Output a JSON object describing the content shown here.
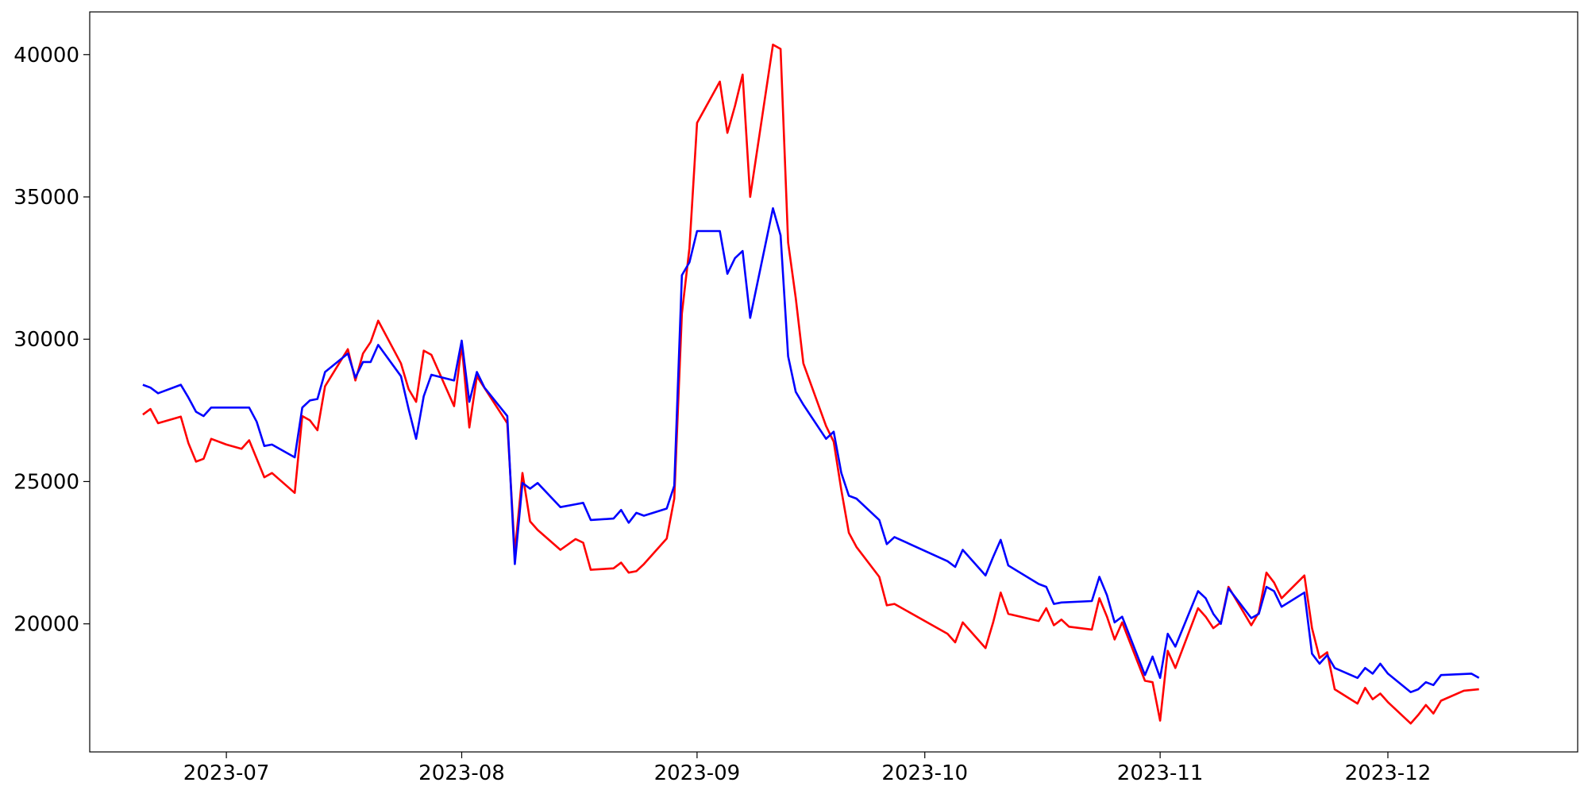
{
  "chart_data": {
    "type": "line",
    "title": "",
    "xlabel": "",
    "ylabel": "",
    "xlim": [
      "2023-06-13",
      "2023-12-26"
    ],
    "ylim": [
      15500,
      41500
    ],
    "grid": false,
    "legend": "none",
    "x_ticks": [
      {
        "date": "2023-07-01",
        "label": "2023-07"
      },
      {
        "date": "2023-08-01",
        "label": "2023-08"
      },
      {
        "date": "2023-09-01",
        "label": "2023-09"
      },
      {
        "date": "2023-10-01",
        "label": "2023-10"
      },
      {
        "date": "2023-11-01",
        "label": "2023-11"
      },
      {
        "date": "2023-12-01",
        "label": "2023-12"
      }
    ],
    "y_ticks": [
      {
        "value": 20000,
        "label": "20000"
      },
      {
        "value": 25000,
        "label": "25000"
      },
      {
        "value": 30000,
        "label": "30000"
      },
      {
        "value": 35000,
        "label": "35000"
      },
      {
        "value": 40000,
        "label": "40000"
      }
    ],
    "series": [
      {
        "color": "#ff0000",
        "points": [
          [
            "2023-06-20",
            27350
          ],
          [
            "2023-06-21",
            27550
          ],
          [
            "2023-06-22",
            27050
          ],
          [
            "2023-06-25",
            27280
          ],
          [
            "2023-06-26",
            26350
          ],
          [
            "2023-06-27",
            25700
          ],
          [
            "2023-06-28",
            25800
          ],
          [
            "2023-06-29",
            26500
          ],
          [
            "2023-07-01",
            26300
          ],
          [
            "2023-07-03",
            26150
          ],
          [
            "2023-07-04",
            26450
          ],
          [
            "2023-07-06",
            25150
          ],
          [
            "2023-07-07",
            25300
          ],
          [
            "2023-07-10",
            24600
          ],
          [
            "2023-07-11",
            27300
          ],
          [
            "2023-07-12",
            27150
          ],
          [
            "2023-07-13",
            26800
          ],
          [
            "2023-07-14",
            28350
          ],
          [
            "2023-07-17",
            29650
          ],
          [
            "2023-07-18",
            28550
          ],
          [
            "2023-07-19",
            29500
          ],
          [
            "2023-07-20",
            29900
          ],
          [
            "2023-07-21",
            30650
          ],
          [
            "2023-07-24",
            29150
          ],
          [
            "2023-07-25",
            28250
          ],
          [
            "2023-07-26",
            27800
          ],
          [
            "2023-07-27",
            29600
          ],
          [
            "2023-07-28",
            29450
          ],
          [
            "2023-07-31",
            27650
          ],
          [
            "2023-08-01",
            29800
          ],
          [
            "2023-08-02",
            26900
          ],
          [
            "2023-08-03",
            28700
          ],
          [
            "2023-08-07",
            27050
          ],
          [
            "2023-08-08",
            22500
          ],
          [
            "2023-08-09",
            25300
          ],
          [
            "2023-08-10",
            23600
          ],
          [
            "2023-08-11",
            23300
          ],
          [
            "2023-08-14",
            22600
          ],
          [
            "2023-08-16",
            22980
          ],
          [
            "2023-08-17",
            22850
          ],
          [
            "2023-08-18",
            21900
          ],
          [
            "2023-08-21",
            21950
          ],
          [
            "2023-08-22",
            22150
          ],
          [
            "2023-08-23",
            21800
          ],
          [
            "2023-08-24",
            21850
          ],
          [
            "2023-08-25",
            22100
          ],
          [
            "2023-08-28",
            23000
          ],
          [
            "2023-08-29",
            24400
          ],
          [
            "2023-08-30",
            30900
          ],
          [
            "2023-08-31",
            33200
          ],
          [
            "2023-09-01",
            37600
          ],
          [
            "2023-09-04",
            39050
          ],
          [
            "2023-09-05",
            37250
          ],
          [
            "2023-09-06",
            38200
          ],
          [
            "2023-09-07",
            39300
          ],
          [
            "2023-09-08",
            35000
          ],
          [
            "2023-09-11",
            40350
          ],
          [
            "2023-09-12",
            40200
          ],
          [
            "2023-09-13",
            33400
          ],
          [
            "2023-09-14",
            31450
          ],
          [
            "2023-09-15",
            29150
          ],
          [
            "2023-09-18",
            26950
          ],
          [
            "2023-09-19",
            26400
          ],
          [
            "2023-09-20",
            24700
          ],
          [
            "2023-09-21",
            23200
          ],
          [
            "2023-09-22",
            22700
          ],
          [
            "2023-09-25",
            21650
          ],
          [
            "2023-09-26",
            20650
          ],
          [
            "2023-09-27",
            20700
          ],
          [
            "2023-10-04",
            19650
          ],
          [
            "2023-10-05",
            19350
          ],
          [
            "2023-10-06",
            20050
          ],
          [
            "2023-10-09",
            19150
          ],
          [
            "2023-10-10",
            20050
          ],
          [
            "2023-10-11",
            21100
          ],
          [
            "2023-10-12",
            20350
          ],
          [
            "2023-10-16",
            20100
          ],
          [
            "2023-10-17",
            20550
          ],
          [
            "2023-10-18",
            19950
          ],
          [
            "2023-10-19",
            20150
          ],
          [
            "2023-10-20",
            19900
          ],
          [
            "2023-10-23",
            19800
          ],
          [
            "2023-10-24",
            20900
          ],
          [
            "2023-10-25",
            20250
          ],
          [
            "2023-10-26",
            19450
          ],
          [
            "2023-10-27",
            20050
          ],
          [
            "2023-10-30",
            18000
          ],
          [
            "2023-10-31",
            17950
          ],
          [
            "2023-11-01",
            16600
          ],
          [
            "2023-11-02",
            19050
          ],
          [
            "2023-11-03",
            18450
          ],
          [
            "2023-11-06",
            20550
          ],
          [
            "2023-11-07",
            20250
          ],
          [
            "2023-11-08",
            19850
          ],
          [
            "2023-11-09",
            20050
          ],
          [
            "2023-11-10",
            21300
          ],
          [
            "2023-11-13",
            19950
          ],
          [
            "2023-11-14",
            20400
          ],
          [
            "2023-11-15",
            21800
          ],
          [
            "2023-11-16",
            21450
          ],
          [
            "2023-11-17",
            20900
          ],
          [
            "2023-11-20",
            21700
          ],
          [
            "2023-11-21",
            19850
          ],
          [
            "2023-11-22",
            18800
          ],
          [
            "2023-11-23",
            19000
          ],
          [
            "2023-11-24",
            17700
          ],
          [
            "2023-11-27",
            17200
          ],
          [
            "2023-11-28",
            17750
          ],
          [
            "2023-11-29",
            17350
          ],
          [
            "2023-11-30",
            17550
          ],
          [
            "2023-12-01",
            17250
          ],
          [
            "2023-12-04",
            16500
          ],
          [
            "2023-12-05",
            16800
          ],
          [
            "2023-12-06",
            17150
          ],
          [
            "2023-12-07",
            16850
          ],
          [
            "2023-12-08",
            17300
          ],
          [
            "2023-12-11",
            17650
          ],
          [
            "2023-12-13",
            17700
          ]
        ]
      },
      {
        "color": "#0000ff",
        "points": [
          [
            "2023-06-20",
            28400
          ],
          [
            "2023-06-21",
            28300
          ],
          [
            "2023-06-22",
            28100
          ],
          [
            "2023-06-25",
            28400
          ],
          [
            "2023-06-26",
            27950
          ],
          [
            "2023-06-27",
            27450
          ],
          [
            "2023-06-28",
            27300
          ],
          [
            "2023-06-29",
            27600
          ],
          [
            "2023-07-03",
            27600
          ],
          [
            "2023-07-04",
            27600
          ],
          [
            "2023-07-05",
            27100
          ],
          [
            "2023-07-06",
            26250
          ],
          [
            "2023-07-07",
            26300
          ],
          [
            "2023-07-10",
            25850
          ],
          [
            "2023-07-11",
            27600
          ],
          [
            "2023-07-12",
            27850
          ],
          [
            "2023-07-13",
            27900
          ],
          [
            "2023-07-14",
            28850
          ],
          [
            "2023-07-17",
            29500
          ],
          [
            "2023-07-18",
            28650
          ],
          [
            "2023-07-19",
            29200
          ],
          [
            "2023-07-20",
            29200
          ],
          [
            "2023-07-21",
            29800
          ],
          [
            "2023-07-24",
            28700
          ],
          [
            "2023-07-25",
            27550
          ],
          [
            "2023-07-26",
            26500
          ],
          [
            "2023-07-27",
            28000
          ],
          [
            "2023-07-28",
            28750
          ],
          [
            "2023-07-31",
            28550
          ],
          [
            "2023-08-01",
            29950
          ],
          [
            "2023-08-02",
            27800
          ],
          [
            "2023-08-03",
            28850
          ],
          [
            "2023-08-04",
            28300
          ],
          [
            "2023-08-07",
            27300
          ],
          [
            "2023-08-08",
            22100
          ],
          [
            "2023-08-09",
            24950
          ],
          [
            "2023-08-10",
            24750
          ],
          [
            "2023-08-11",
            24950
          ],
          [
            "2023-08-14",
            24100
          ],
          [
            "2023-08-16",
            24200
          ],
          [
            "2023-08-17",
            24250
          ],
          [
            "2023-08-18",
            23650
          ],
          [
            "2023-08-21",
            23700
          ],
          [
            "2023-08-22",
            24000
          ],
          [
            "2023-08-23",
            23550
          ],
          [
            "2023-08-24",
            23900
          ],
          [
            "2023-08-25",
            23800
          ],
          [
            "2023-08-28",
            24050
          ],
          [
            "2023-08-29",
            24850
          ],
          [
            "2023-08-30",
            32250
          ],
          [
            "2023-08-31",
            32700
          ],
          [
            "2023-09-01",
            33800
          ],
          [
            "2023-09-04",
            33800
          ],
          [
            "2023-09-05",
            32300
          ],
          [
            "2023-09-06",
            32850
          ],
          [
            "2023-09-07",
            33100
          ],
          [
            "2023-09-08",
            30750
          ],
          [
            "2023-09-11",
            34600
          ],
          [
            "2023-09-12",
            33650
          ],
          [
            "2023-09-13",
            29400
          ],
          [
            "2023-09-14",
            28150
          ],
          [
            "2023-09-15",
            27700
          ],
          [
            "2023-09-18",
            26500
          ],
          [
            "2023-09-19",
            26750
          ],
          [
            "2023-09-20",
            25300
          ],
          [
            "2023-09-21",
            24500
          ],
          [
            "2023-09-22",
            24400
          ],
          [
            "2023-09-25",
            23650
          ],
          [
            "2023-09-26",
            22800
          ],
          [
            "2023-09-27",
            23050
          ],
          [
            "2023-10-04",
            22200
          ],
          [
            "2023-10-05",
            22000
          ],
          [
            "2023-10-06",
            22600
          ],
          [
            "2023-10-09",
            21700
          ],
          [
            "2023-10-10",
            22350
          ],
          [
            "2023-10-11",
            22950
          ],
          [
            "2023-10-12",
            22050
          ],
          [
            "2023-10-16",
            21400
          ],
          [
            "2023-10-17",
            21300
          ],
          [
            "2023-10-18",
            20700
          ],
          [
            "2023-10-19",
            20750
          ],
          [
            "2023-10-23",
            20800
          ],
          [
            "2023-10-24",
            21650
          ],
          [
            "2023-10-25",
            21000
          ],
          [
            "2023-10-26",
            20050
          ],
          [
            "2023-10-27",
            20250
          ],
          [
            "2023-10-30",
            18200
          ],
          [
            "2023-10-31",
            18850
          ],
          [
            "2023-11-01",
            18100
          ],
          [
            "2023-11-02",
            19650
          ],
          [
            "2023-11-03",
            19200
          ],
          [
            "2023-11-06",
            21150
          ],
          [
            "2023-11-07",
            20900
          ],
          [
            "2023-11-08",
            20350
          ],
          [
            "2023-11-09",
            20000
          ],
          [
            "2023-11-10",
            21250
          ],
          [
            "2023-11-13",
            20200
          ],
          [
            "2023-11-14",
            20350
          ],
          [
            "2023-11-15",
            21300
          ],
          [
            "2023-11-16",
            21150
          ],
          [
            "2023-11-17",
            20600
          ],
          [
            "2023-11-20",
            21100
          ],
          [
            "2023-11-21",
            18950
          ],
          [
            "2023-11-22",
            18600
          ],
          [
            "2023-11-23",
            18900
          ],
          [
            "2023-11-24",
            18450
          ],
          [
            "2023-11-27",
            18100
          ],
          [
            "2023-11-28",
            18450
          ],
          [
            "2023-11-29",
            18250
          ],
          [
            "2023-11-30",
            18600
          ],
          [
            "2023-12-01",
            18250
          ],
          [
            "2023-12-04",
            17600
          ],
          [
            "2023-12-05",
            17700
          ],
          [
            "2023-12-06",
            17950
          ],
          [
            "2023-12-07",
            17850
          ],
          [
            "2023-12-08",
            18200
          ],
          [
            "2023-12-12",
            18250
          ],
          [
            "2023-12-13",
            18100
          ]
        ]
      }
    ]
  }
}
